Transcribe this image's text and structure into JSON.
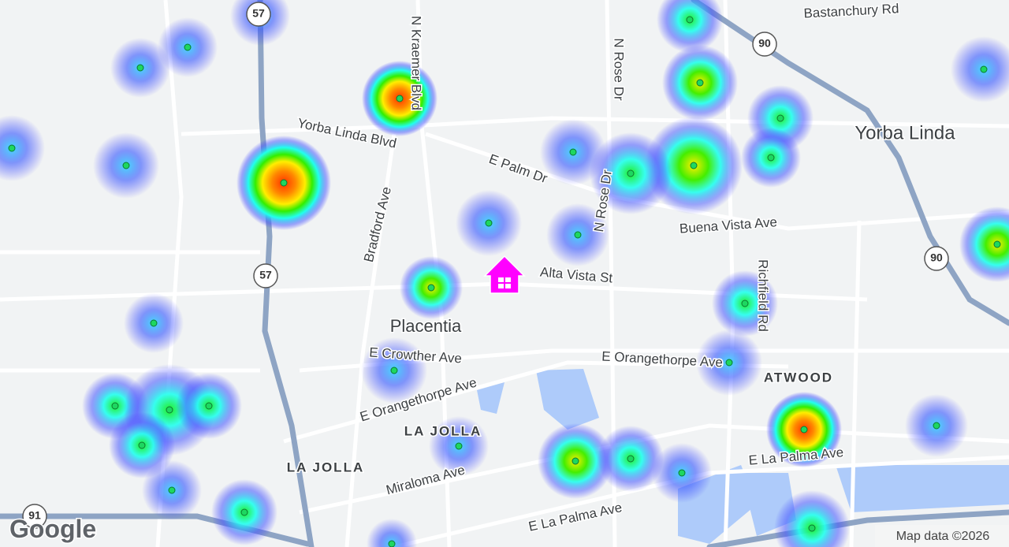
{
  "map": {
    "streets": [
      "N Kraemer Blvd",
      "Yorba Linda Blvd",
      "Bradford Ave",
      "E Palm Dr",
      "N Rose Dr",
      "N Rose Dr",
      "Buena Vista Ave",
      "Richfield Rd",
      "Alta Vista St",
      "E Crowther Ave",
      "E Orangethorpe Ave",
      "E Orangethorpe Ave",
      "Miraloma Ave",
      "E La Palma Ave",
      "E La Palma Ave",
      "Bastanchury Rd"
    ],
    "places": [
      "Yorba Linda",
      "Placentia",
      "ATWOOD",
      "LA JOLLA",
      "LA JOLLA"
    ],
    "shields": [
      "57",
      "57",
      "90",
      "90",
      "91"
    ],
    "logo": "Google",
    "attribution": "Map data ©2026"
  }
}
